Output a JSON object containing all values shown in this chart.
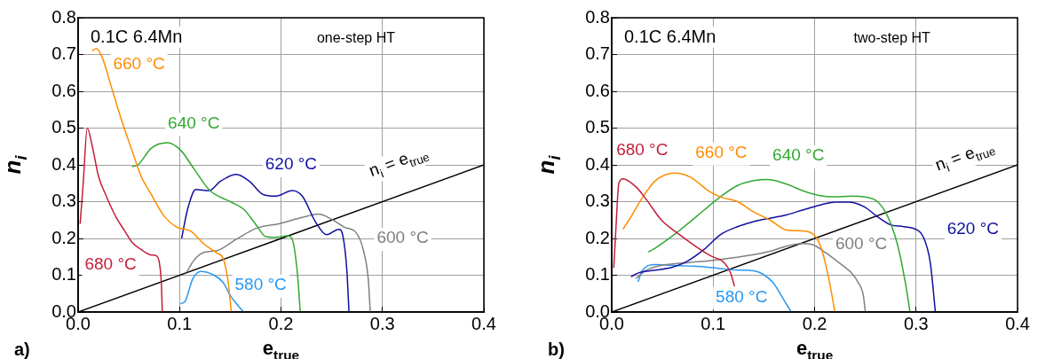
{
  "chart_data": [
    {
      "type": "line",
      "xlabel": "e$_{true}$",
      "ylabel": "n$_{i}$",
      "xlim": [
        0,
        0.4
      ],
      "ylim": [
        0,
        0.8
      ],
      "xticks": [
        {
          "value": 0,
          "label": "0.0"
        },
        0.1,
        0.2,
        0.3,
        0.4
      ],
      "yticks": [
        {
          "value": 0,
          "label": "0.0"
        },
        0.1,
        0.2,
        0.3,
        0.4,
        0.5,
        0.6,
        0.7,
        0.8
      ],
      "grid": true,
      "annotations": [
        "0.1C 6.4Mn",
        "one-step HT",
        "a)"
      ],
      "series": [
        {
          "name": "680 °C",
          "color": "#c41e3a",
          "x": [
            0.002,
            0.005,
            0.009,
            0.014,
            0.02,
            0.027,
            0.037,
            0.046,
            0.053,
            0.062,
            0.072,
            0.077,
            0.08,
            0.082,
            0.083
          ],
          "values": [
            0.24,
            0.35,
            0.5,
            0.45,
            0.37,
            0.32,
            0.26,
            0.22,
            0.19,
            0.17,
            0.155,
            0.153,
            0.135,
            0.08,
            0
          ]
        },
        {
          "name": "660 °C",
          "color": "#ff8c00",
          "x": [
            0.014,
            0.018,
            0.024,
            0.033,
            0.043,
            0.053,
            0.062,
            0.072,
            0.085,
            0.098,
            0.111,
            0.124,
            0.137,
            0.143,
            0.148,
            0.151
          ],
          "values": [
            0.71,
            0.716,
            0.69,
            0.61,
            0.52,
            0.44,
            0.37,
            0.32,
            0.26,
            0.23,
            0.22,
            0.185,
            0.16,
            0.145,
            0.08,
            0
          ]
        },
        {
          "name": "640 °C",
          "color": "#33a833",
          "x": [
            0.053,
            0.059,
            0.072,
            0.088,
            0.101,
            0.114,
            0.13,
            0.15,
            0.163,
            0.176,
            0.185,
            0.195,
            0.206,
            0.211,
            0.216,
            0.219
          ],
          "values": [
            0.395,
            0.4,
            0.445,
            0.46,
            0.44,
            0.39,
            0.33,
            0.3,
            0.28,
            0.235,
            0.205,
            0.203,
            0.207,
            0.198,
            0.11,
            0
          ]
        },
        {
          "name": "620 °C",
          "color": "#1010a0",
          "x": [
            0.102,
            0.108,
            0.116,
            0.129,
            0.14,
            0.156,
            0.169,
            0.182,
            0.195,
            0.211,
            0.221,
            0.234,
            0.245,
            0.257,
            0.261,
            0.265,
            0.267
          ],
          "values": [
            0.2,
            0.28,
            0.333,
            0.33,
            0.355,
            0.374,
            0.355,
            0.32,
            0.315,
            0.33,
            0.315,
            0.245,
            0.21,
            0.225,
            0.207,
            0.11,
            0
          ]
        },
        {
          "name": "600 °C",
          "color": "#808080",
          "x": [
            0.107,
            0.114,
            0.124,
            0.137,
            0.156,
            0.176,
            0.198,
            0.221,
            0.237,
            0.25,
            0.263,
            0.274,
            0.281,
            0.286,
            0.288
          ],
          "values": [
            0.108,
            0.14,
            0.162,
            0.167,
            0.198,
            0.228,
            0.24,
            0.257,
            0.266,
            0.252,
            0.23,
            0.216,
            0.17,
            0.09,
            0
          ]
        },
        {
          "name": "580 °C",
          "color": "#2a98f0",
          "x": [
            0.101,
            0.105,
            0.113,
            0.121,
            0.134,
            0.143,
            0.15,
            0.156,
            0.163
          ],
          "values": [
            0.023,
            0.027,
            0.09,
            0.11,
            0.1,
            0.08,
            0.045,
            0.023,
            0
          ]
        },
        {
          "name": "n$_{i}$ = e$_{true}$",
          "color": "#000000",
          "x": [
            0,
            0.4
          ],
          "values": [
            0,
            0.4
          ]
        }
      ]
    },
    {
      "type": "line",
      "xlabel": "e$_{true}$",
      "ylabel": "n$_{i}$",
      "xlim": [
        0,
        0.4
      ],
      "ylim": [
        0,
        0.8
      ],
      "xticks": [
        {
          "value": 0,
          "label": "0.0"
        },
        0.1,
        0.2,
        0.3,
        0.4
      ],
      "yticks": [
        {
          "value": 0,
          "label": "0.0"
        },
        0.1,
        0.2,
        0.3,
        0.4,
        0.5,
        0.6,
        0.7,
        0.8
      ],
      "grid": true,
      "annotations": [
        "0.1C 6.4Mn",
        "two-step HT",
        "b)"
      ],
      "series": [
        {
          "name": "680 °C",
          "color": "#c41e3a",
          "x": [
            0.002,
            0.004,
            0.007,
            0.011,
            0.024,
            0.033,
            0.049,
            0.065,
            0.082,
            0.098,
            0.111,
            0.117,
            0.121
          ],
          "values": [
            0.12,
            0.22,
            0.35,
            0.362,
            0.34,
            0.31,
            0.25,
            0.214,
            0.18,
            0.152,
            0.134,
            0.107,
            0.07
          ]
        },
        {
          "name": "660 °C",
          "color": "#ff8c00",
          "x": [
            0.011,
            0.017,
            0.03,
            0.043,
            0.062,
            0.078,
            0.095,
            0.107,
            0.124,
            0.14,
            0.156,
            0.172,
            0.182,
            0.191,
            0.201,
            0.207,
            0.214,
            0.22
          ],
          "values": [
            0.225,
            0.25,
            0.31,
            0.357,
            0.378,
            0.366,
            0.33,
            0.313,
            0.3,
            0.272,
            0.25,
            0.223,
            0.221,
            0.22,
            0.205,
            0.17,
            0.09,
            0
          ]
        },
        {
          "name": "640 °C",
          "color": "#33a833",
          "x": [
            0.036,
            0.043,
            0.059,
            0.075,
            0.091,
            0.107,
            0.124,
            0.14,
            0.153,
            0.172,
            0.188,
            0.204,
            0.22,
            0.236,
            0.249,
            0.262,
            0.272,
            0.282,
            0.29,
            0.294
          ],
          "values": [
            0.163,
            0.174,
            0.205,
            0.24,
            0.277,
            0.313,
            0.344,
            0.357,
            0.36,
            0.348,
            0.33,
            0.317,
            0.313,
            0.315,
            0.313,
            0.3,
            0.26,
            0.18,
            0.07,
            0
          ]
        },
        {
          "name": "620 °C",
          "color": "#1010a0",
          "x": [
            0.019,
            0.027,
            0.043,
            0.059,
            0.075,
            0.091,
            0.107,
            0.124,
            0.14,
            0.156,
            0.172,
            0.188,
            0.204,
            0.22,
            0.233,
            0.249,
            0.262,
            0.275,
            0.288,
            0.301,
            0.307,
            0.314,
            0.319
          ],
          "values": [
            0.096,
            0.107,
            0.114,
            0.121,
            0.139,
            0.17,
            0.21,
            0.232,
            0.246,
            0.255,
            0.264,
            0.277,
            0.29,
            0.299,
            0.299,
            0.286,
            0.259,
            0.237,
            0.232,
            0.223,
            0.205,
            0.134,
            0
          ]
        },
        {
          "name": "600 °C",
          "color": "#808080",
          "x": [
            0.024,
            0.033,
            0.049,
            0.075,
            0.107,
            0.14,
            0.156,
            0.172,
            0.188,
            0.198,
            0.211,
            0.224,
            0.236,
            0.243,
            0.248,
            0.25
          ],
          "values": [
            0.091,
            0.112,
            0.127,
            0.134,
            0.143,
            0.156,
            0.165,
            0.179,
            0.186,
            0.183,
            0.161,
            0.134,
            0.107,
            0.08,
            0.045,
            0
          ]
        },
        {
          "name": "580 °C",
          "color": "#2a98f0",
          "x": [
            0.026,
            0.03,
            0.043,
            0.059,
            0.075,
            0.091,
            0.107,
            0.124,
            0.14,
            0.149,
            0.159,
            0.169,
            0.177
          ],
          "values": [
            0.082,
            0.112,
            0.129,
            0.127,
            0.125,
            0.123,
            0.118,
            0.114,
            0.112,
            0.103,
            0.08,
            0.036,
            0
          ]
        },
        {
          "name": "n$_{i}$ = e$_{true}$",
          "color": "#000000",
          "x": [
            0,
            0.4
          ],
          "values": [
            0,
            0.4
          ]
        }
      ]
    }
  ]
}
